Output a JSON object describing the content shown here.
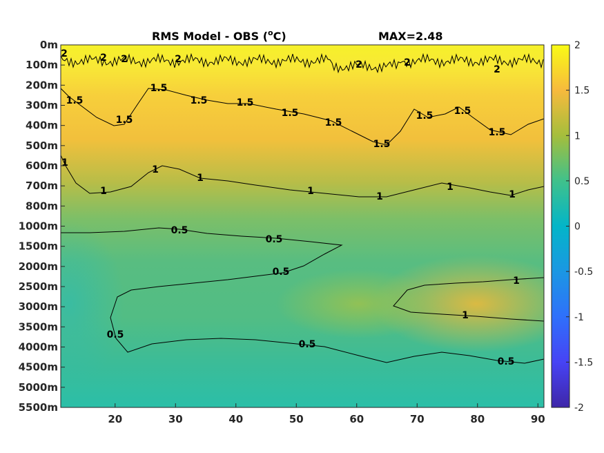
{
  "chart_data": {
    "type": "heatmap",
    "title": "RMS Model - OBS (",
    "title_unit": "C)",
    "title_degree": "o",
    "max_label": "MAX=2.48",
    "x_ticks": [
      "20",
      "30",
      "40",
      "50",
      "60",
      "70",
      "80",
      "90"
    ],
    "x_tick_values": [
      20,
      30,
      40,
      50,
      60,
      70,
      80,
      90
    ],
    "xlim": [
      11,
      91
    ],
    "y_ticks": [
      "0m",
      "100m",
      "200m",
      "300m",
      "400m",
      "500m",
      "600m",
      "700m",
      "800m",
      "1000m",
      "1500m",
      "2000m",
      "2500m",
      "3000m",
      "3500m",
      "4000m",
      "4500m",
      "5000m",
      "5500m"
    ],
    "colorbar": {
      "range": [
        -2,
        2
      ],
      "ticks": [
        "2",
        "1.5",
        "1",
        "0.5",
        "0",
        "-0.5",
        "-1",
        "-1.5",
        "-2"
      ],
      "tick_values": [
        2,
        1.5,
        1,
        0.5,
        0,
        -0.5,
        -1,
        -1.5,
        -2
      ],
      "colormap": "parula"
    },
    "contour_labels": [
      "2",
      "1.5",
      "1",
      "0.5"
    ],
    "grid": false
  }
}
